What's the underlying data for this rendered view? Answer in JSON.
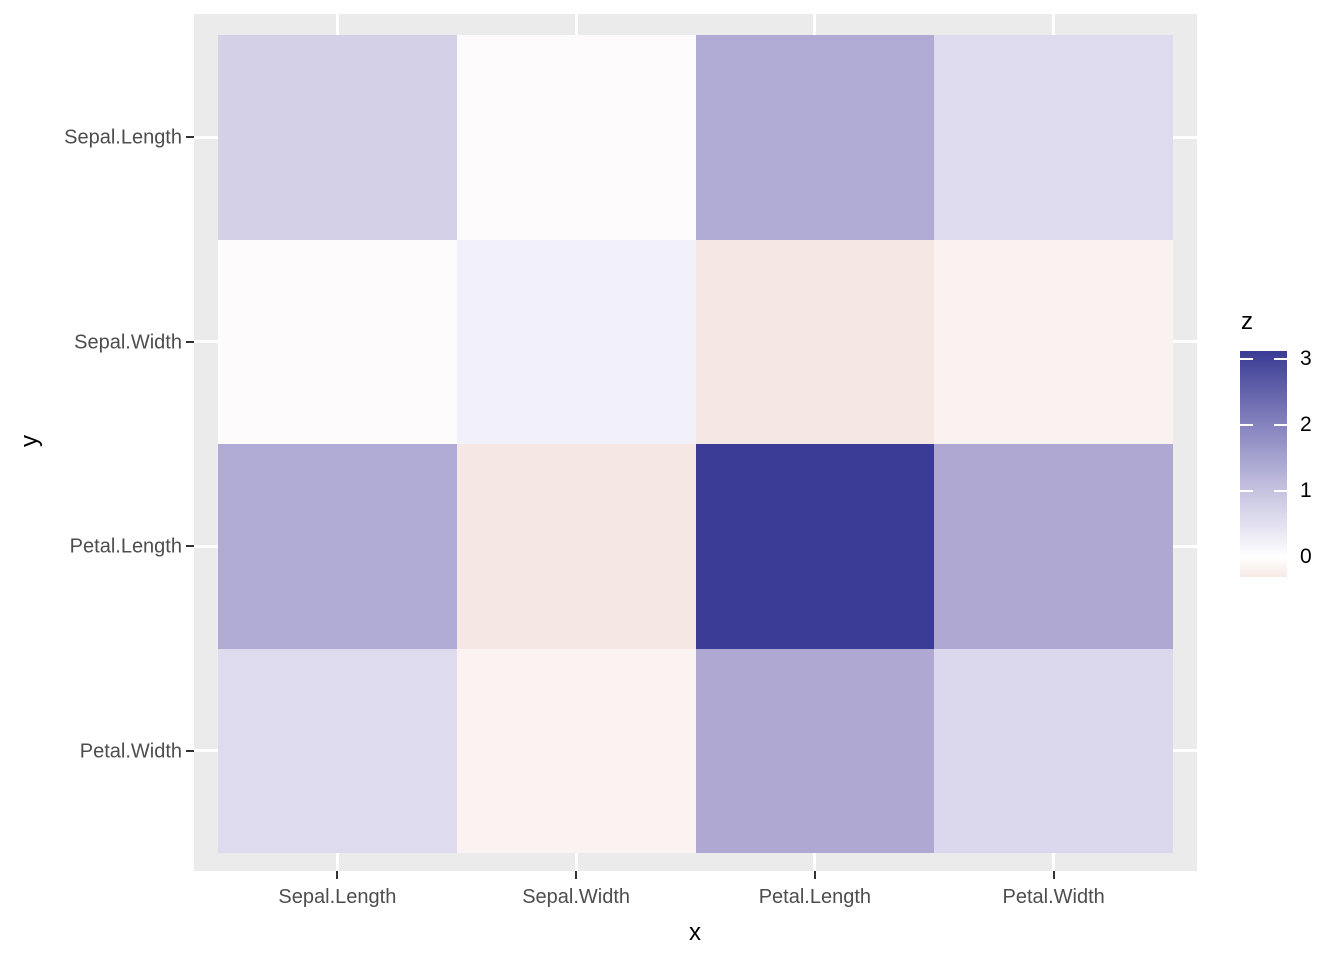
{
  "chart_data": {
    "type": "heatmap",
    "title": "",
    "xlabel": "x",
    "ylabel": "y",
    "x_categories": [
      "Sepal.Length",
      "Sepal.Width",
      "Petal.Length",
      "Petal.Width"
    ],
    "y_categories_top_to_bottom": [
      "Sepal.Length",
      "Sepal.Width",
      "Petal.Length",
      "Petal.Width"
    ],
    "matrix_rows_top_to_bottom": [
      [
        0.69,
        -0.04,
        1.27,
        0.52
      ],
      [
        -0.04,
        0.19,
        -0.33,
        -0.12
      ],
      [
        1.27,
        -0.33,
        3.12,
        1.3
      ],
      [
        0.52,
        -0.12,
        1.3,
        0.58
      ]
    ],
    "cell_colors": [
      [
        "#D3D0E8",
        "#FEFBFC",
        "#AFABD5",
        "#DEDBEF"
      ],
      [
        "#FEFBFC",
        "#F2F1F9",
        "#F5E7E3",
        "#FAF2F0"
      ],
      [
        "#AFABD5",
        "#F5E7E3",
        "#3A3B94",
        "#AEA8D3"
      ],
      [
        "#DEDBEF",
        "#FBF3F1",
        "#AEA8D3",
        "#DBD8ED"
      ]
    ],
    "legend": {
      "title": "z",
      "tick_labels": [
        "3",
        "2",
        "1",
        "0"
      ],
      "tick_values": [
        3,
        2,
        1,
        0
      ],
      "bar_top_value": 3.12,
      "bar_bottom_value": -0.3,
      "gradient_stops": [
        {
          "pos": 0,
          "color": "#3A3B94"
        },
        {
          "pos": 32.7,
          "color": "#8583BE"
        },
        {
          "pos": 62.0,
          "color": "#C6C3E0"
        },
        {
          "pos": 76.6,
          "color": "#E2E0F0"
        },
        {
          "pos": 91.2,
          "color": "#FFFFFF"
        },
        {
          "pos": 100,
          "color": "#F6E9E5"
        }
      ]
    },
    "grid": "white major gridlines at category centers",
    "legend_position": "right",
    "colors": {
      "page_bg": "#FFFFFF",
      "panel_bg": "#EBEBEB",
      "gridline": "#FFFFFF",
      "tick_mark": "#333333",
      "axis_text": "#4D4D4D",
      "axis_title": "#000000",
      "legend_text": "#000000"
    }
  }
}
